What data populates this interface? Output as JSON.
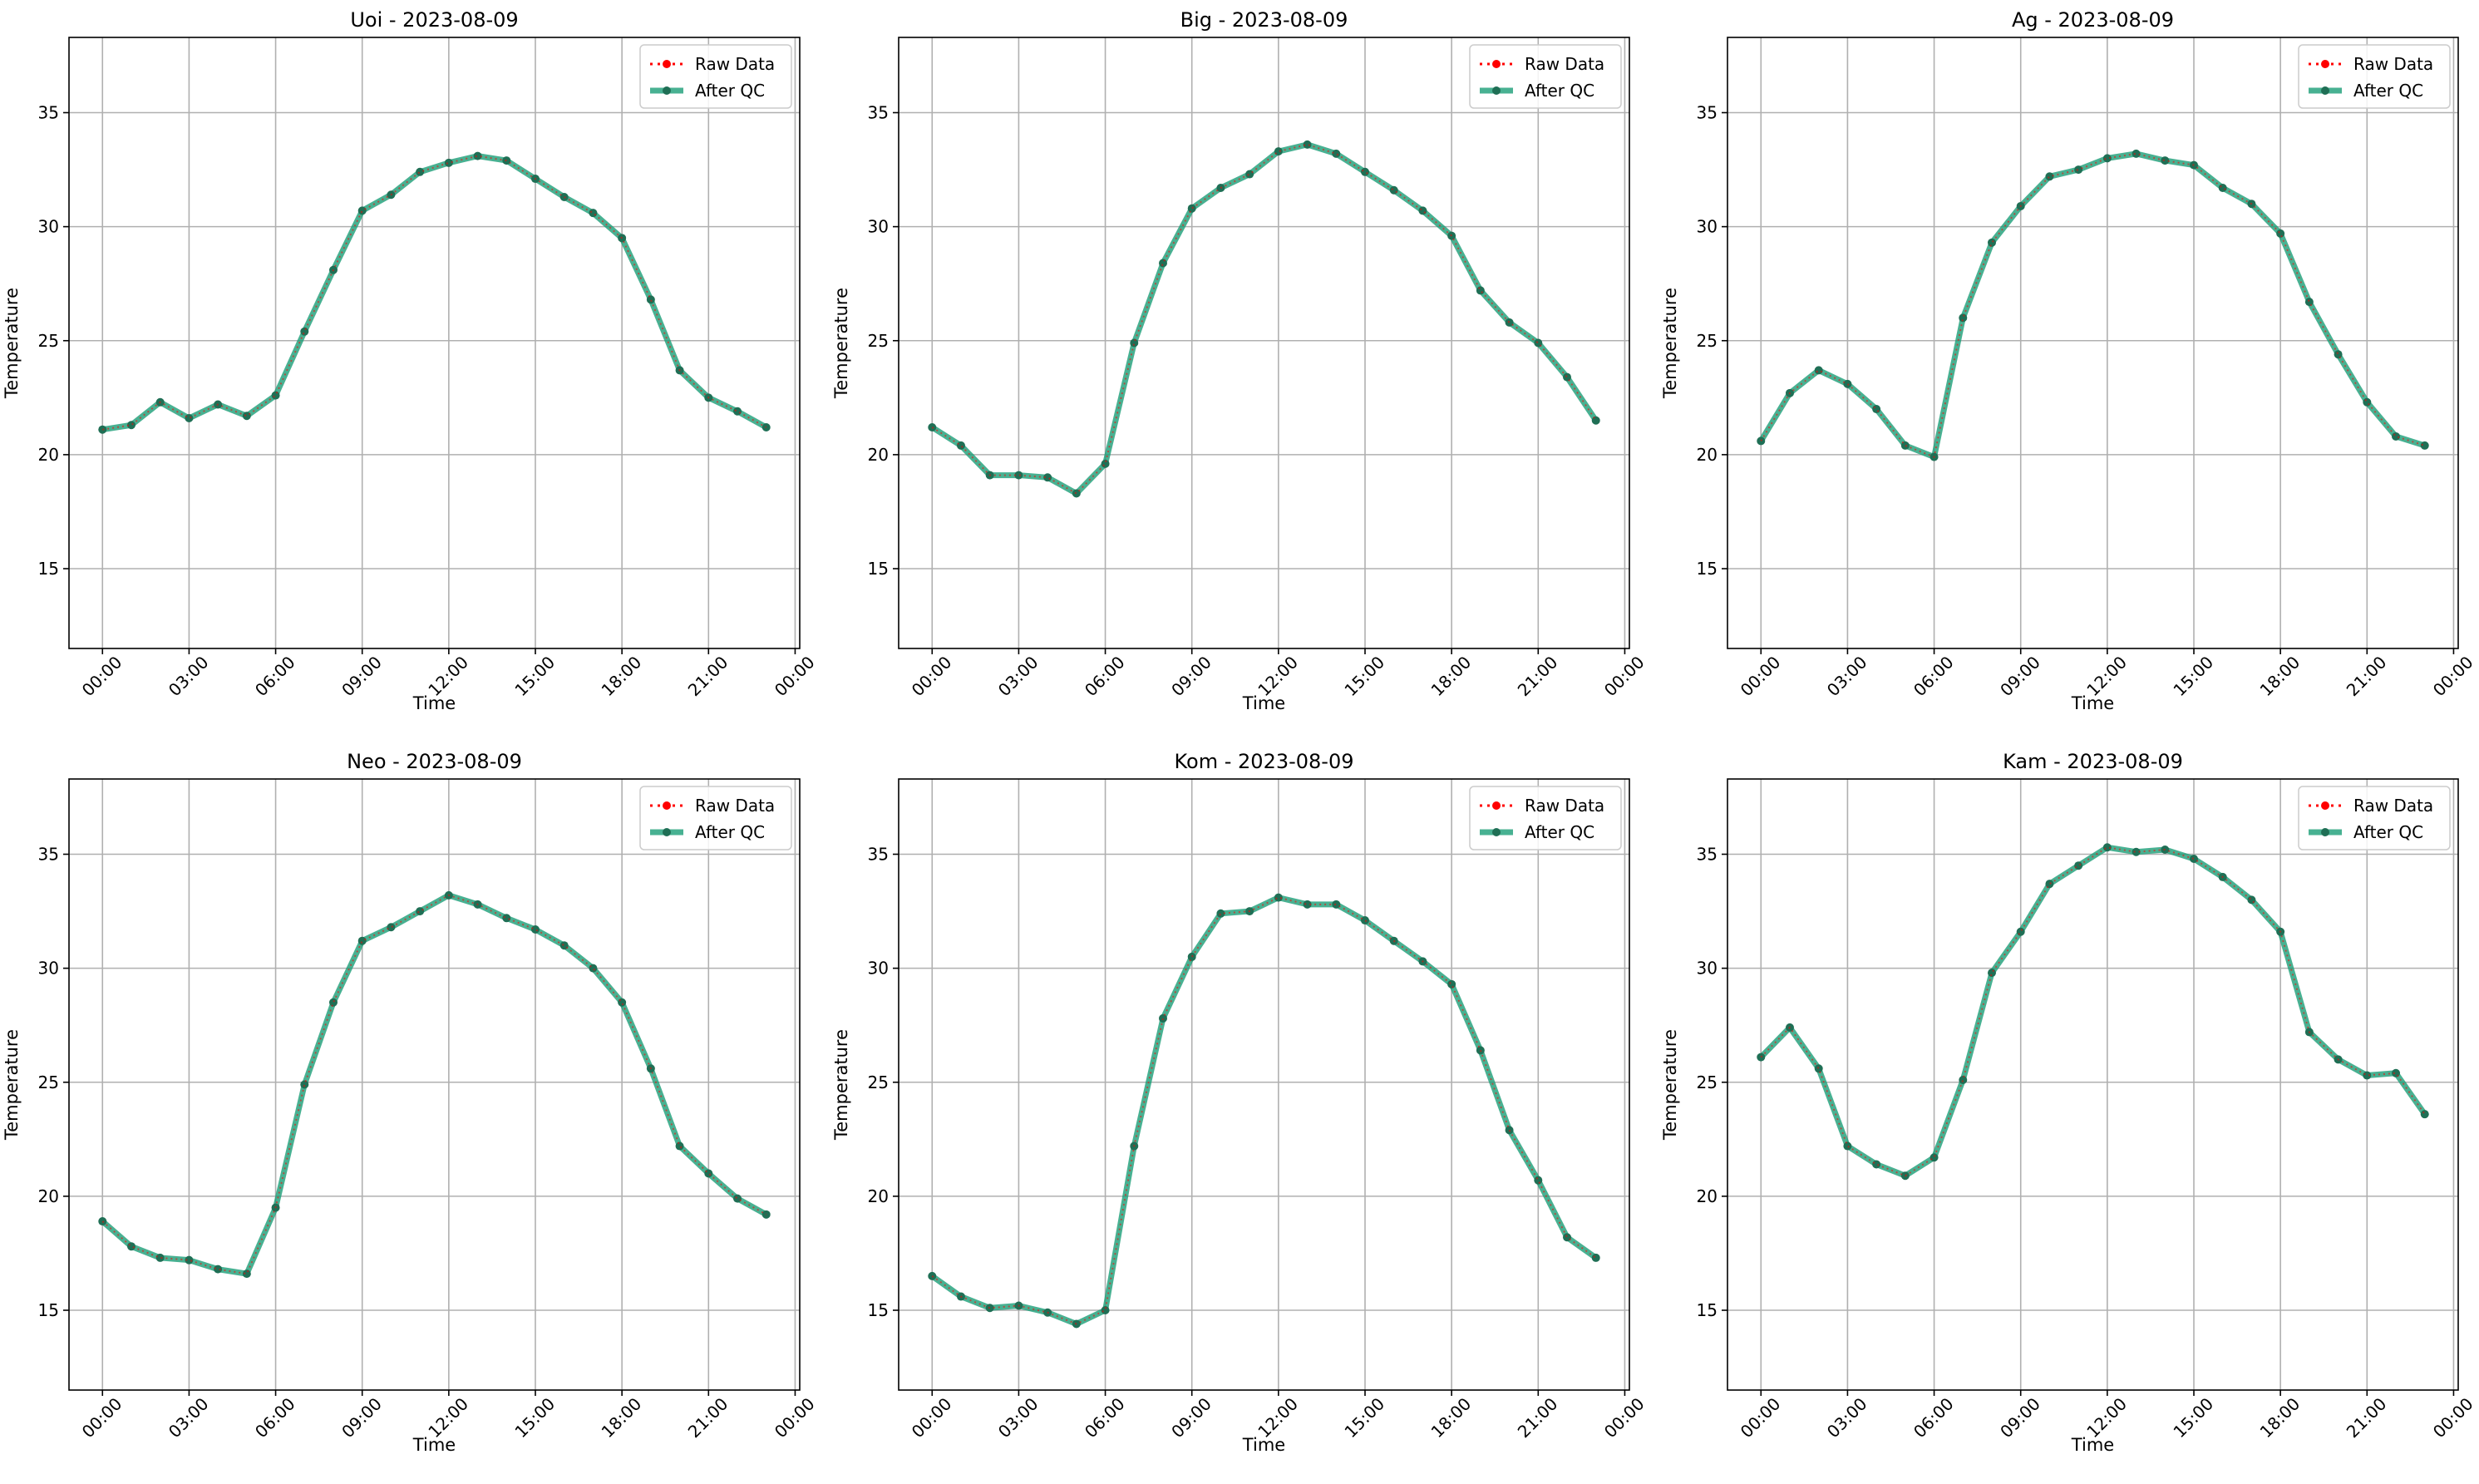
{
  "chart_data": [
    {
      "type": "line",
      "title": "Uoi - 2023-08-09",
      "xlabel": "Time",
      "ylabel": "Temperature",
      "x": [
        "00:00",
        "01:00",
        "02:00",
        "03:00",
        "04:00",
        "05:00",
        "06:00",
        "07:00",
        "08:00",
        "09:00",
        "10:00",
        "11:00",
        "12:00",
        "13:00",
        "14:00",
        "15:00",
        "16:00",
        "17:00",
        "18:00",
        "19:00",
        "20:00",
        "21:00",
        "22:00",
        "23:00"
      ],
      "xticks": [
        "00:00",
        "03:00",
        "06:00",
        "09:00",
        "12:00",
        "15:00",
        "18:00",
        "21:00",
        "00:00"
      ],
      "yticks": [
        15,
        20,
        25,
        30,
        35
      ],
      "ylim": [
        11.5,
        38.3
      ],
      "grid": true,
      "legend": "upper right",
      "series": [
        {
          "name": "Raw Data",
          "values": [
            21.1,
            21.3,
            22.3,
            21.6,
            22.2,
            21.7,
            22.6,
            25.4,
            28.1,
            30.7,
            31.4,
            32.4,
            32.8,
            33.1,
            32.9,
            32.1,
            31.3,
            30.6,
            29.5,
            26.8,
            23.7,
            22.5,
            21.9,
            21.2
          ]
        },
        {
          "name": "After QC",
          "values": [
            21.1,
            21.3,
            22.3,
            21.6,
            22.2,
            21.7,
            22.6,
            25.4,
            28.1,
            30.7,
            31.4,
            32.4,
            32.8,
            33.1,
            32.9,
            32.1,
            31.3,
            30.6,
            29.5,
            26.8,
            23.7,
            22.5,
            21.9,
            21.2
          ]
        }
      ]
    },
    {
      "type": "line",
      "title": "Big - 2023-08-09",
      "xlabel": "Time",
      "ylabel": "Temperature",
      "x": [
        "00:00",
        "01:00",
        "02:00",
        "03:00",
        "04:00",
        "05:00",
        "06:00",
        "07:00",
        "08:00",
        "09:00",
        "10:00",
        "11:00",
        "12:00",
        "13:00",
        "14:00",
        "15:00",
        "16:00",
        "17:00",
        "18:00",
        "19:00",
        "20:00",
        "21:00",
        "22:00",
        "23:00"
      ],
      "xticks": [
        "00:00",
        "03:00",
        "06:00",
        "09:00",
        "12:00",
        "15:00",
        "18:00",
        "21:00",
        "00:00"
      ],
      "yticks": [
        15,
        20,
        25,
        30,
        35
      ],
      "ylim": [
        11.5,
        38.3
      ],
      "grid": true,
      "legend": "upper right",
      "series": [
        {
          "name": "Raw Data",
          "values": [
            21.2,
            20.4,
            19.1,
            19.1,
            19.0,
            18.3,
            19.6,
            24.9,
            28.4,
            30.8,
            31.7,
            32.3,
            33.3,
            33.6,
            33.2,
            32.4,
            31.6,
            30.7,
            29.6,
            27.2,
            25.8,
            24.9,
            23.4,
            21.5
          ]
        },
        {
          "name": "After QC",
          "values": [
            21.2,
            20.4,
            19.1,
            19.1,
            19.0,
            18.3,
            19.6,
            24.9,
            28.4,
            30.8,
            31.7,
            32.3,
            33.3,
            33.6,
            33.2,
            32.4,
            31.6,
            30.7,
            29.6,
            27.2,
            25.8,
            24.9,
            23.4,
            21.5
          ]
        }
      ]
    },
    {
      "type": "line",
      "title": "Ag - 2023-08-09",
      "xlabel": "Time",
      "ylabel": "Temperature",
      "x": [
        "00:00",
        "01:00",
        "02:00",
        "03:00",
        "04:00",
        "05:00",
        "06:00",
        "07:00",
        "08:00",
        "09:00",
        "10:00",
        "11:00",
        "12:00",
        "13:00",
        "14:00",
        "15:00",
        "16:00",
        "17:00",
        "18:00",
        "19:00",
        "20:00",
        "21:00",
        "22:00",
        "23:00"
      ],
      "xticks": [
        "00:00",
        "03:00",
        "06:00",
        "09:00",
        "12:00",
        "15:00",
        "18:00",
        "21:00",
        "00:00"
      ],
      "yticks": [
        15,
        20,
        25,
        30,
        35
      ],
      "ylim": [
        11.5,
        38.3
      ],
      "grid": true,
      "legend": "upper right",
      "series": [
        {
          "name": "Raw Data",
          "values": [
            20.6,
            22.7,
            23.7,
            23.1,
            22.0,
            20.4,
            19.9,
            26.0,
            29.3,
            30.9,
            32.2,
            32.5,
            33.0,
            33.2,
            32.9,
            32.7,
            31.7,
            31.0,
            29.7,
            26.7,
            24.4,
            22.3,
            20.8,
            20.4
          ]
        },
        {
          "name": "After QC",
          "values": [
            20.6,
            22.7,
            23.7,
            23.1,
            22.0,
            20.4,
            19.9,
            26.0,
            29.3,
            30.9,
            32.2,
            32.5,
            33.0,
            33.2,
            32.9,
            32.7,
            31.7,
            31.0,
            29.7,
            26.7,
            24.4,
            22.3,
            20.8,
            20.4
          ]
        }
      ]
    },
    {
      "type": "line",
      "title": "Neo - 2023-08-09",
      "xlabel": "Time",
      "ylabel": "Temperature",
      "x": [
        "00:00",
        "01:00",
        "02:00",
        "03:00",
        "04:00",
        "05:00",
        "06:00",
        "07:00",
        "08:00",
        "09:00",
        "10:00",
        "11:00",
        "12:00",
        "13:00",
        "14:00",
        "15:00",
        "16:00",
        "17:00",
        "18:00",
        "19:00",
        "20:00",
        "21:00",
        "22:00",
        "23:00"
      ],
      "xticks": [
        "00:00",
        "03:00",
        "06:00",
        "09:00",
        "12:00",
        "15:00",
        "18:00",
        "21:00",
        "00:00"
      ],
      "yticks": [
        15,
        20,
        25,
        30,
        35
      ],
      "ylim": [
        11.5,
        38.3
      ],
      "grid": true,
      "legend": "upper right",
      "series": [
        {
          "name": "Raw Data",
          "values": [
            18.9,
            17.8,
            17.3,
            17.2,
            16.8,
            16.6,
            19.5,
            24.9,
            28.5,
            31.2,
            31.8,
            32.5,
            33.2,
            32.8,
            32.2,
            31.7,
            31.0,
            30.0,
            28.5,
            25.6,
            22.2,
            21.0,
            19.9,
            19.2
          ]
        },
        {
          "name": "After QC",
          "values": [
            18.9,
            17.8,
            17.3,
            17.2,
            16.8,
            16.6,
            19.5,
            24.9,
            28.5,
            31.2,
            31.8,
            32.5,
            33.2,
            32.8,
            32.2,
            31.7,
            31.0,
            30.0,
            28.5,
            25.6,
            22.2,
            21.0,
            19.9,
            19.2
          ]
        }
      ]
    },
    {
      "type": "line",
      "title": "Kom - 2023-08-09",
      "xlabel": "Time",
      "ylabel": "Temperature",
      "x": [
        "00:00",
        "01:00",
        "02:00",
        "03:00",
        "04:00",
        "05:00",
        "06:00",
        "07:00",
        "08:00",
        "09:00",
        "10:00",
        "11:00",
        "12:00",
        "13:00",
        "14:00",
        "15:00",
        "16:00",
        "17:00",
        "18:00",
        "19:00",
        "20:00",
        "21:00",
        "22:00",
        "23:00"
      ],
      "xticks": [
        "00:00",
        "03:00",
        "06:00",
        "09:00",
        "12:00",
        "15:00",
        "18:00",
        "21:00",
        "00:00"
      ],
      "yticks": [
        15,
        20,
        25,
        30,
        35
      ],
      "ylim": [
        11.5,
        38.3
      ],
      "grid": true,
      "legend": "upper right",
      "series": [
        {
          "name": "Raw Data",
          "values": [
            16.5,
            15.6,
            15.1,
            15.2,
            14.9,
            14.4,
            15.0,
            22.2,
            27.8,
            30.5,
            32.4,
            32.5,
            33.1,
            32.8,
            32.8,
            32.1,
            31.2,
            30.3,
            29.3,
            26.4,
            22.9,
            20.7,
            18.2,
            17.3
          ]
        },
        {
          "name": "After QC",
          "values": [
            16.5,
            15.6,
            15.1,
            15.2,
            14.9,
            14.4,
            15.0,
            22.2,
            27.8,
            30.5,
            32.4,
            32.5,
            33.1,
            32.8,
            32.8,
            32.1,
            31.2,
            30.3,
            29.3,
            26.4,
            22.9,
            20.7,
            18.2,
            17.3
          ]
        }
      ]
    },
    {
      "type": "line",
      "title": "Kam - 2023-08-09",
      "xlabel": "Time",
      "ylabel": "Temperature",
      "x": [
        "00:00",
        "01:00",
        "02:00",
        "03:00",
        "04:00",
        "05:00",
        "06:00",
        "07:00",
        "08:00",
        "09:00",
        "10:00",
        "11:00",
        "12:00",
        "13:00",
        "14:00",
        "15:00",
        "16:00",
        "17:00",
        "18:00",
        "19:00",
        "20:00",
        "21:00",
        "22:00",
        "23:00"
      ],
      "xticks": [
        "00:00",
        "03:00",
        "06:00",
        "09:00",
        "12:00",
        "15:00",
        "18:00",
        "21:00",
        "00:00"
      ],
      "yticks": [
        15,
        20,
        25,
        30,
        35
      ],
      "ylim": [
        11.5,
        38.3
      ],
      "grid": true,
      "legend": "upper right",
      "series": [
        {
          "name": "Raw Data",
          "values": [
            26.1,
            27.4,
            25.6,
            22.2,
            21.4,
            20.9,
            21.7,
            25.1,
            29.8,
            31.6,
            33.7,
            34.5,
            35.3,
            35.1,
            35.2,
            34.8,
            34.0,
            33.0,
            31.6,
            27.2,
            26.0,
            25.3,
            25.4,
            23.6
          ]
        },
        {
          "name": "After QC",
          "values": [
            26.1,
            27.4,
            25.6,
            22.2,
            21.4,
            20.9,
            21.7,
            25.1,
            29.8,
            31.6,
            33.7,
            34.5,
            35.3,
            35.1,
            35.2,
            34.8,
            34.0,
            33.0,
            31.6,
            27.2,
            26.0,
            25.3,
            25.4,
            23.6
          ]
        }
      ]
    }
  ],
  "colors": {
    "raw": "#ff0000",
    "qc": "#1a9e77",
    "qc_marker": "#1f6f55",
    "grid": "#b0b0b0"
  }
}
